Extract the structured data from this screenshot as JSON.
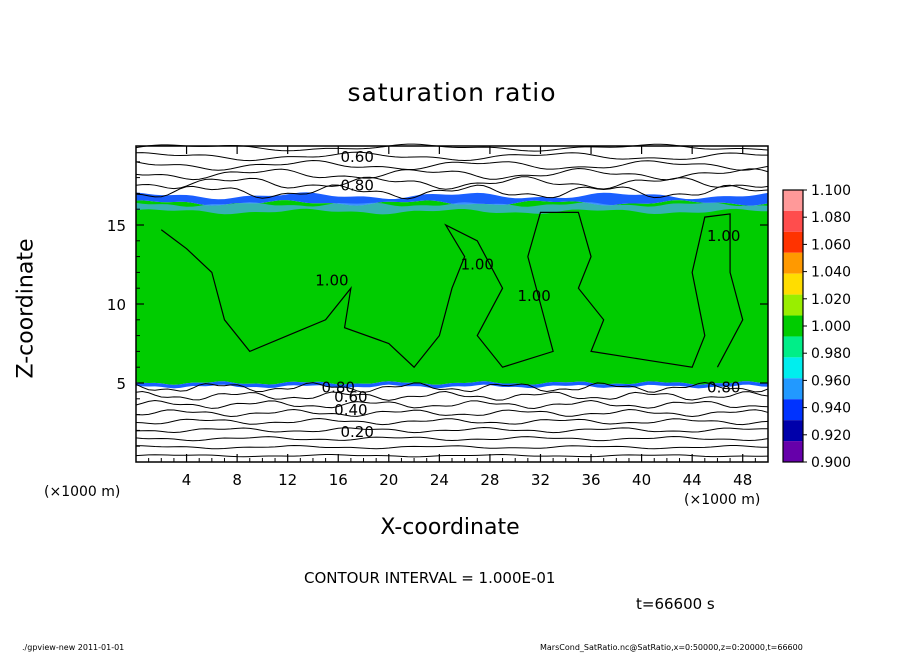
{
  "title": "saturation ratio",
  "x_axis": {
    "label": "X-coordinate",
    "unit": "(×1000 m)"
  },
  "y_axis": {
    "label": "Z-coordinate",
    "unit": "(×1000 m)"
  },
  "contour_interval": "CONTOUR INTERVAL = 1.000E-01",
  "time_label": "t=66600 s",
  "footer": {
    "left": "./gpview-new   2011-01-01",
    "right": "MarsCond_SatRatio.nc@SatRatio,x=0:50000,z=0:20000,t=66600"
  },
  "colors": {
    "outside_fill": "#ffffff",
    "cloud_fill": "#00cc00",
    "cloud_top_band": "#1a5fff",
    "cloud_top_light": "#4da6ff",
    "frame": "#000000"
  },
  "chart_data": {
    "type": "heatmap",
    "title": "saturation ratio",
    "xlabel": "X-coordinate",
    "ylabel": "Z-coordinate",
    "xlim": [
      0,
      50
    ],
    "ylim": [
      0,
      20
    ],
    "x_ticks": [
      4,
      8,
      12,
      16,
      20,
      24,
      28,
      32,
      36,
      40,
      44,
      48
    ],
    "y_ticks": [
      5,
      10,
      15
    ],
    "colorbar": {
      "levels": [
        "1.100",
        "1.080",
        "1.060",
        "1.040",
        "1.020",
        "1.000",
        "0.980",
        "0.960",
        "0.940",
        "0.920",
        "0.900"
      ],
      "colors": [
        "#ff9999",
        "#ff4d4d",
        "#ff3300",
        "#ff9900",
        "#ffdd00",
        "#99ee00",
        "#00cc00",
        "#00ee88",
        "#00eeee",
        "#2299ff",
        "#0033ff",
        "#0000aa",
        "#6600aa"
      ]
    },
    "cloud_layer": {
      "z_bottom": 5.0,
      "z_top": 16.4,
      "value": 1.0
    },
    "contour_labels": [
      {
        "text": "0.60",
        "x": 17.5,
        "z": 19.3
      },
      {
        "text": "0.80",
        "x": 17.5,
        "z": 17.5
      },
      {
        "text": "1.00",
        "x": 46.5,
        "z": 14.3
      },
      {
        "text": "1.00",
        "x": 15.5,
        "z": 11.5
      },
      {
        "text": "1.00",
        "x": 27.0,
        "z": 12.5
      },
      {
        "text": "1.00",
        "x": 31.5,
        "z": 10.5
      },
      {
        "text": "0.80",
        "x": 46.5,
        "z": 4.7
      },
      {
        "text": "0.80",
        "x": 16.0,
        "z": 4.7
      },
      {
        "text": "0.60",
        "x": 17.0,
        "z": 4.1
      },
      {
        "text": "0.40",
        "x": 17.0,
        "z": 3.3
      },
      {
        "text": "0.20",
        "x": 17.5,
        "z": 1.9
      }
    ],
    "contour_levels_above": [
      0.4,
      0.5,
      0.6,
      0.7,
      0.8,
      0.9
    ],
    "contour_levels_below": [
      0.1,
      0.2,
      0.3,
      0.4,
      0.5,
      0.6,
      0.7,
      0.8,
      0.9
    ]
  }
}
